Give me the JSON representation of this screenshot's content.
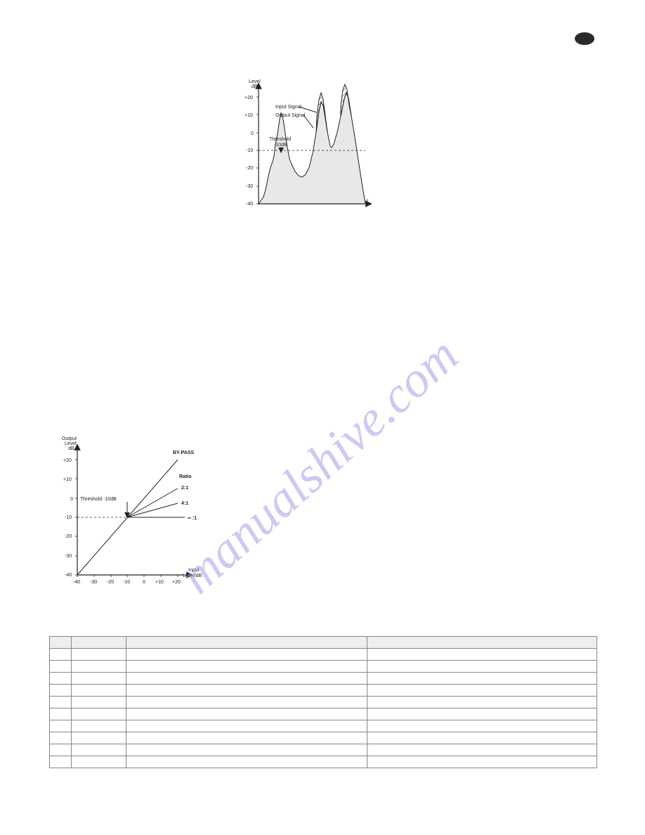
{
  "badge": {
    "text": ""
  },
  "chart1": {
    "type": "line",
    "y_title": "Level\ndB",
    "x_label": "t",
    "ylim": [
      -40,
      25
    ],
    "yticks": [
      -40,
      -30,
      -20,
      -10,
      0,
      10,
      20
    ],
    "ytick_labels": [
      "-40",
      "-30",
      "-20",
      "-10",
      "0",
      "+10",
      "+20"
    ],
    "threshold_label": "Threshold\n-10dB",
    "threshold_y": -10,
    "input_label": "Input Signal",
    "output_label": "Output Signal",
    "axis_color": "#222222",
    "bg_fill": "#e8e8e8",
    "hatch_color": "#222222"
  },
  "chart2": {
    "type": "line",
    "y_title": "Output\nLevel\ndB",
    "x_title": "Input\nLevel/dB",
    "ylim": [
      -40,
      25
    ],
    "xlim": [
      -40,
      25
    ],
    "ticks": [
      -40,
      -30,
      -20,
      -10,
      0,
      10,
      20
    ],
    "tick_labels": [
      "-40",
      "-30",
      "-20",
      "-10",
      "0",
      "+10",
      "+20"
    ],
    "threshold_label": "Threshold -10dB",
    "threshold_x": -10,
    "bypass_label": "BY-PASS",
    "ratio_label": "Ratio",
    "lines": [
      {
        "label": "2:1",
        "end_y": 5
      },
      {
        "label": "4:1",
        "end_y": -2.5
      },
      {
        "label": "∞ :1",
        "end_y": -10
      }
    ],
    "axis_color": "#222222"
  },
  "table": {
    "columns": [
      "",
      "",
      "",
      ""
    ],
    "rows": [
      [
        "",
        "",
        "",
        ""
      ],
      [
        "",
        "",
        "",
        ""
      ],
      [
        "",
        "",
        "",
        ""
      ],
      [
        "",
        "",
        "",
        ""
      ],
      [
        "",
        "",
        "",
        ""
      ],
      [
        "",
        "",
        "",
        ""
      ],
      [
        "",
        "",
        "",
        ""
      ],
      [
        "",
        "",
        "",
        ""
      ],
      [
        "",
        "",
        "",
        ""
      ],
      [
        "",
        "",
        "",
        ""
      ]
    ]
  },
  "watermark": {
    "text": "manualshive.com",
    "color": "#a89ce8",
    "opacity": 0.55
  }
}
